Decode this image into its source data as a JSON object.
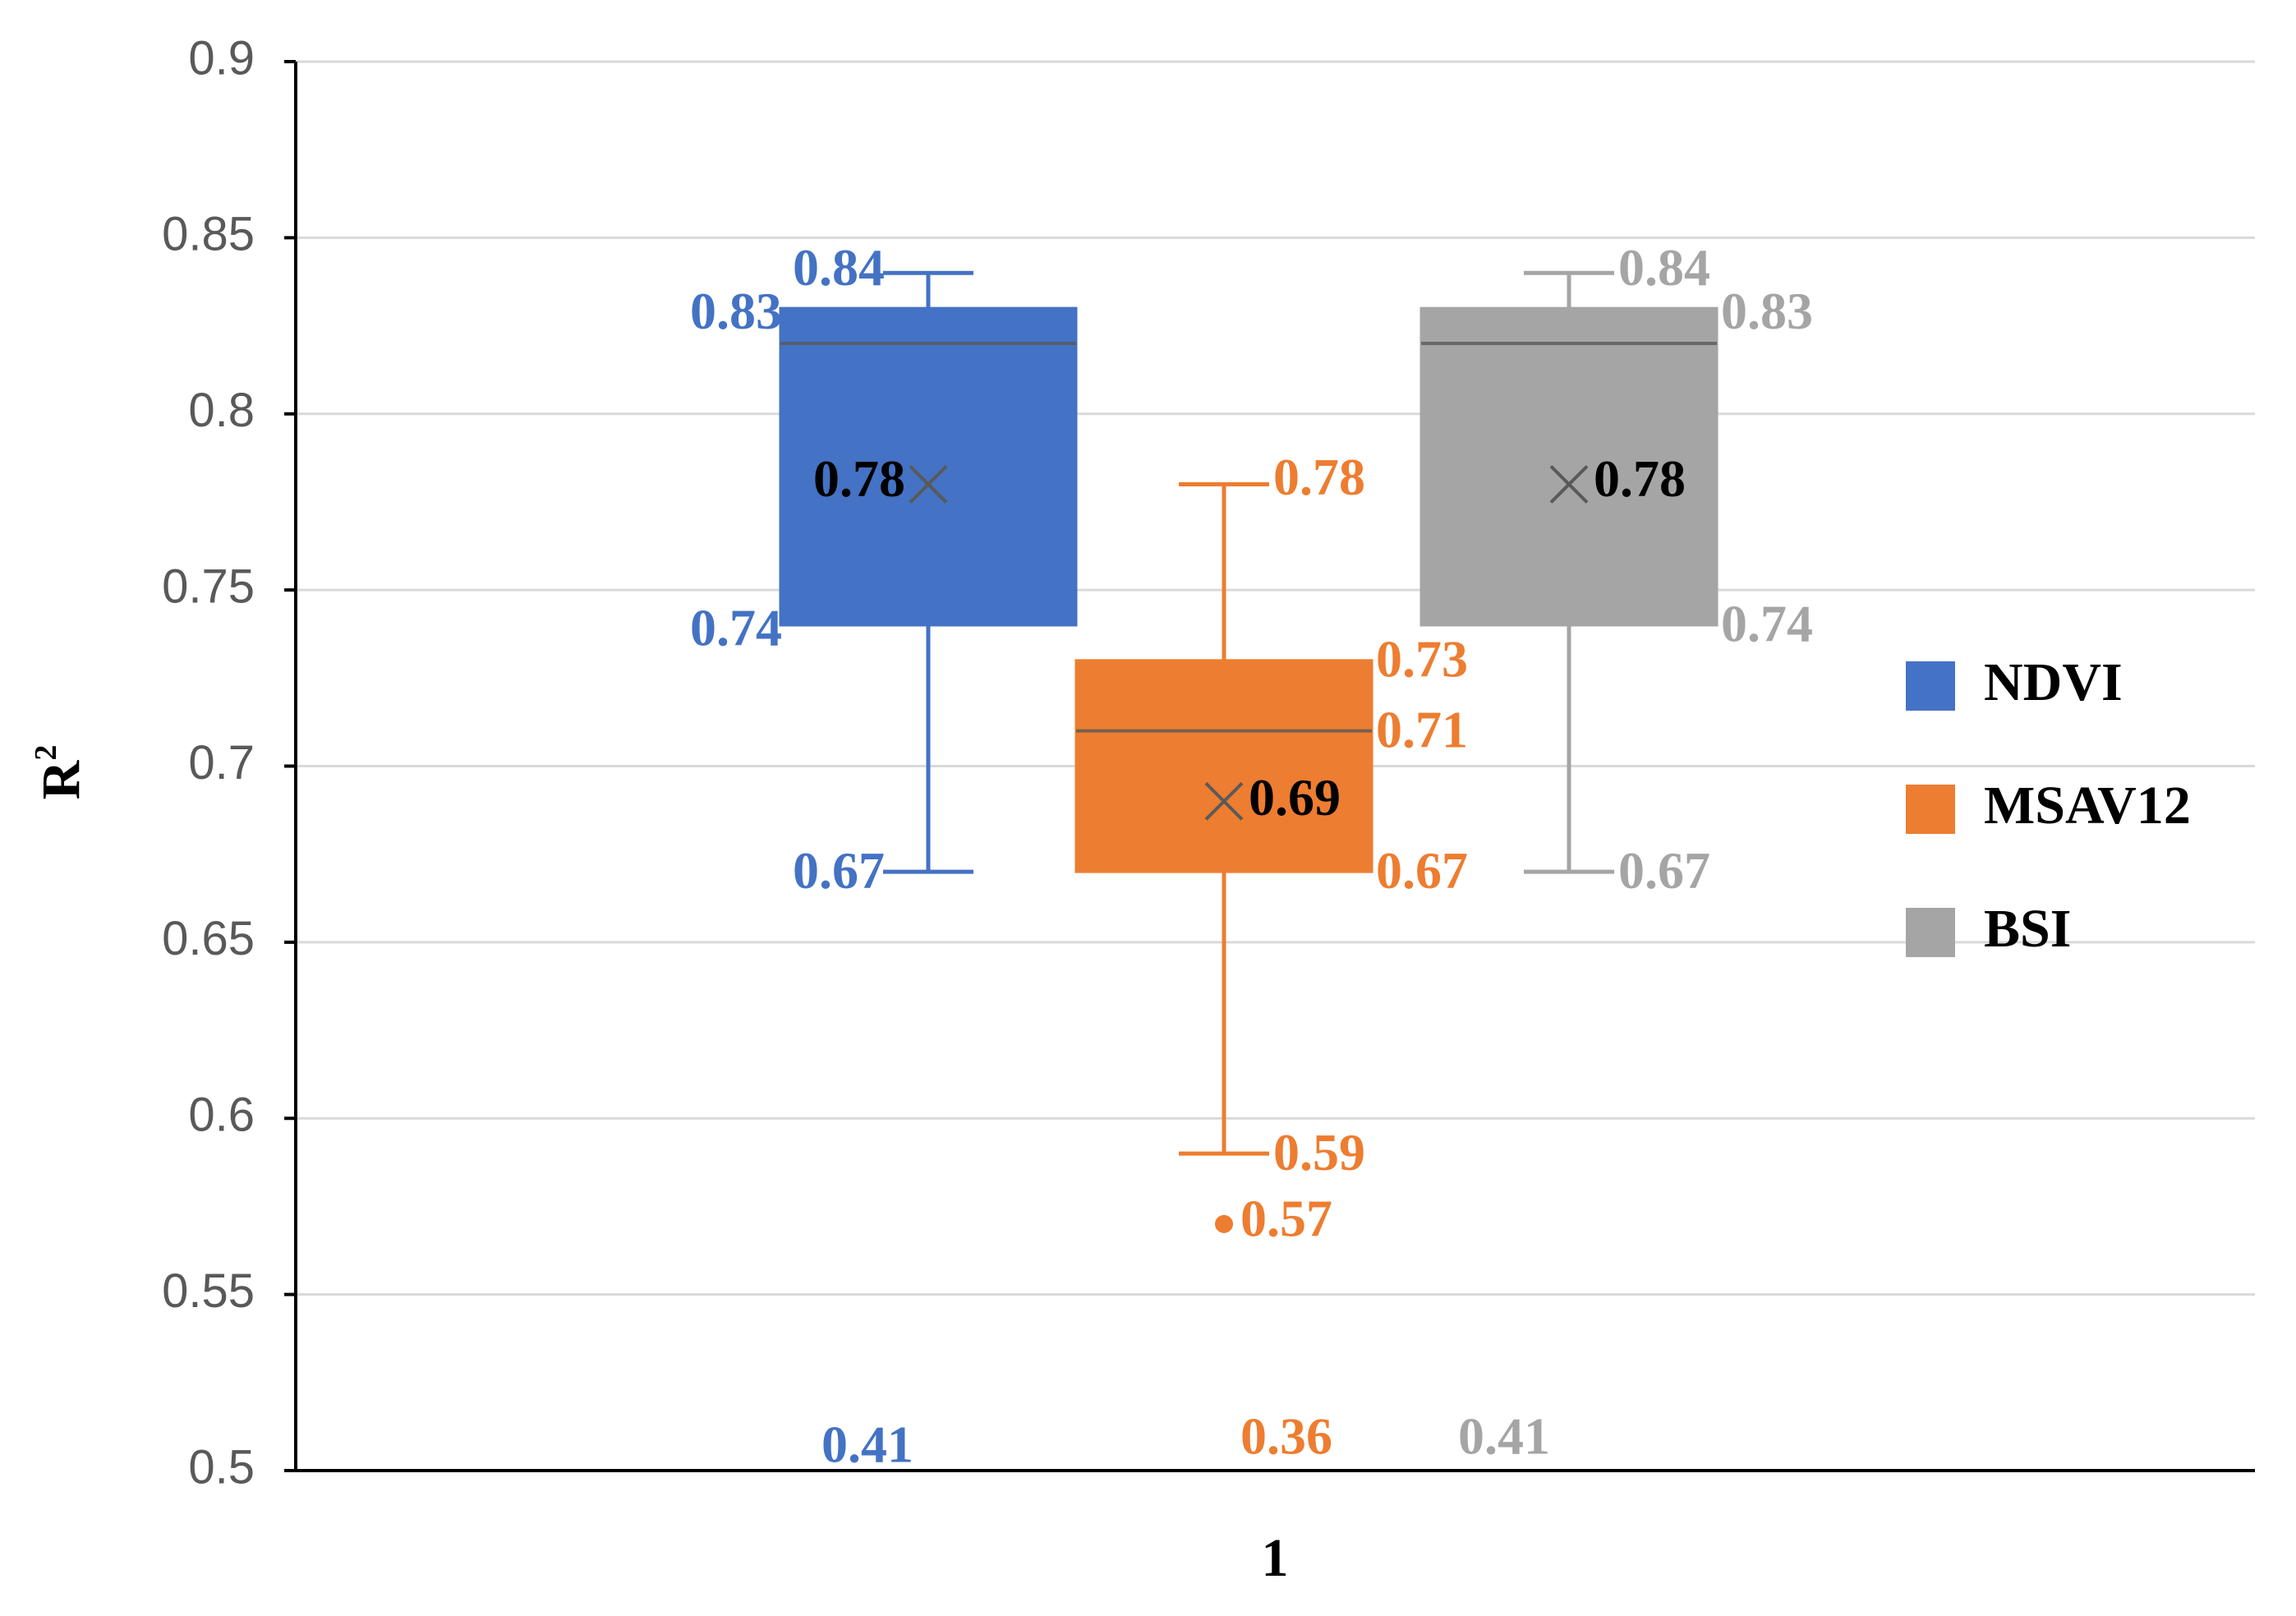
{
  "chart_data": {
    "type": "box",
    "title": "",
    "xlabel": "1",
    "ylabel": "R",
    "ylabel_superscript": "2",
    "ylim": [
      0.5,
      0.9
    ],
    "yticks": [
      "0.5",
      "0.55",
      "0.6",
      "0.65",
      "0.7",
      "0.75",
      "0.8",
      "0.85",
      "0.9"
    ],
    "grid": true,
    "legend_position": "right",
    "series": [
      {
        "name": "NDVI",
        "color": "#4472C4",
        "label_color": "#4472C4",
        "min": 0.67,
        "q1": 0.74,
        "median": 0.82,
        "q3": 0.83,
        "max": 0.84,
        "mean": 0.78,
        "outliers": [],
        "labels": {
          "max": "0.84",
          "q3": "0.83",
          "mean": "0.78",
          "q1": "0.74",
          "min": "0.67",
          "bottom": "0.41"
        }
      },
      {
        "name": "MSAV12",
        "color": "#ED7D31",
        "label_color": "#ED7D31",
        "min": 0.59,
        "q1": 0.67,
        "median": 0.71,
        "q3": 0.73,
        "max": 0.78,
        "mean": 0.69,
        "outliers": [
          0.57
        ],
        "labels": {
          "max": "0.78",
          "q3": "0.73",
          "median": "0.71",
          "mean": "0.69",
          "q1": "0.67",
          "min": "0.59",
          "outlier": "0.57",
          "bottom": "0.36"
        }
      },
      {
        "name": "BSI",
        "color": "#A5A5A5",
        "label_color": "#A5A5A5",
        "min": 0.67,
        "q1": 0.74,
        "median": 0.82,
        "q3": 0.83,
        "max": 0.84,
        "mean": 0.78,
        "outliers": [],
        "labels": {
          "max": "0.84",
          "q3": "0.83",
          "mean": "0.78",
          "q1": "0.74",
          "min": "0.67",
          "bottom": "0.41"
        }
      }
    ]
  }
}
